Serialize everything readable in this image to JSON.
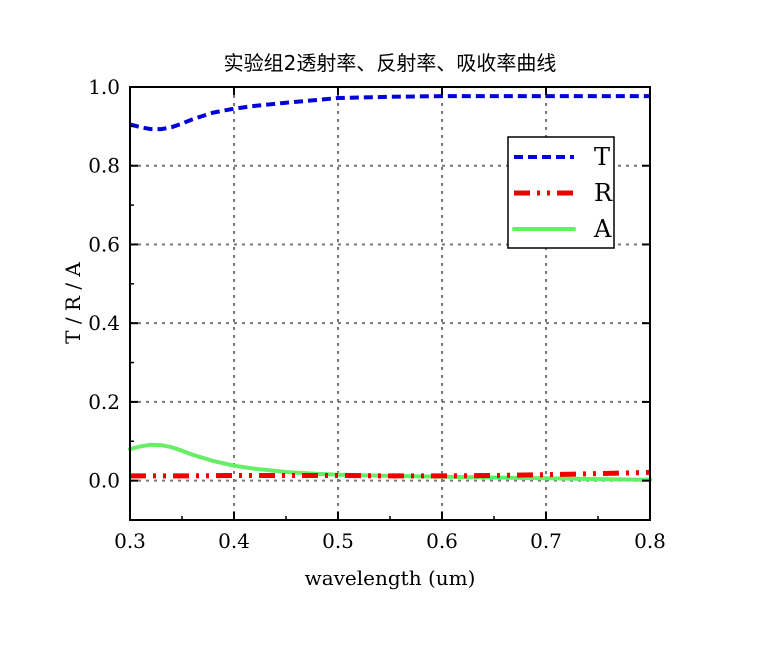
{
  "chart_data": {
    "type": "line",
    "title": "实验组2透射率、反射率、吸收率曲线",
    "xlabel": "wavelength (um)",
    "ylabel": "T / R / A",
    "xlim": [
      0.3,
      0.8
    ],
    "ylim": [
      -0.1,
      1.0
    ],
    "xticks": [
      0.3,
      0.4,
      0.5,
      0.6,
      0.7,
      0.8
    ],
    "xtick_labels": [
      "0.3",
      "0.4",
      "0.5",
      "0.6",
      "0.7",
      "0.8"
    ],
    "yticks": [
      0.0,
      0.2,
      0.4,
      0.6,
      0.8,
      1.0
    ],
    "ytick_labels": [
      "0.0",
      "0.2",
      "0.4",
      "0.6",
      "0.8",
      "1.0"
    ],
    "grid": true,
    "legend_position": "top-right",
    "series": [
      {
        "name": "T",
        "color": "#0000dd",
        "style": "dashed",
        "x": [
          0.3,
          0.31,
          0.32,
          0.33,
          0.34,
          0.35,
          0.36,
          0.38,
          0.4,
          0.42,
          0.45,
          0.48,
          0.5,
          0.55,
          0.6,
          0.65,
          0.7,
          0.75,
          0.8
        ],
        "y": [
          0.905,
          0.898,
          0.893,
          0.893,
          0.898,
          0.907,
          0.918,
          0.935,
          0.945,
          0.952,
          0.96,
          0.967,
          0.972,
          0.975,
          0.977,
          0.977,
          0.977,
          0.977,
          0.977
        ]
      },
      {
        "name": "R",
        "color": "#ee0000",
        "style": "dash-dot-dot",
        "x": [
          0.3,
          0.35,
          0.4,
          0.45,
          0.5,
          0.55,
          0.6,
          0.65,
          0.7,
          0.75,
          0.8
        ],
        "y": [
          0.012,
          0.012,
          0.013,
          0.013,
          0.013,
          0.012,
          0.012,
          0.013,
          0.015,
          0.018,
          0.021
        ]
      },
      {
        "name": "A",
        "color": "#66ee66",
        "style": "solid",
        "x": [
          0.3,
          0.31,
          0.32,
          0.33,
          0.34,
          0.35,
          0.36,
          0.38,
          0.4,
          0.42,
          0.45,
          0.48,
          0.5,
          0.55,
          0.6,
          0.65,
          0.7,
          0.75,
          0.8
        ],
        "y": [
          0.08,
          0.087,
          0.091,
          0.09,
          0.085,
          0.076,
          0.066,
          0.05,
          0.038,
          0.03,
          0.022,
          0.017,
          0.015,
          0.012,
          0.01,
          0.008,
          0.006,
          0.004,
          0.002
        ]
      }
    ]
  }
}
